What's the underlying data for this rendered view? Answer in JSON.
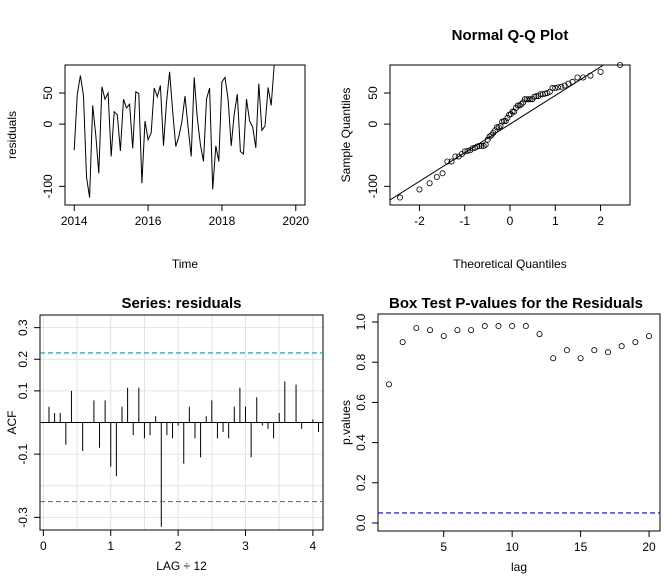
{
  "chart_data": [
    {
      "id": "residuals",
      "type": "line",
      "title": "",
      "xlabel": "Time",
      "ylabel": "residuals",
      "xlim": [
        2013.75,
        2020.25
      ],
      "ylim": [
        -130,
        95
      ],
      "xticks": [
        2014,
        2016,
        2018,
        2020
      ],
      "xtick_labels": [
        "2014",
        "2016",
        "2018",
        "2020"
      ],
      "yticks": [
        -100,
        0,
        50
      ],
      "ytick_labels": [
        "-100",
        "0",
        "50"
      ],
      "start": 2014,
      "frequency": 12,
      "values": [
        -42,
        48,
        78,
        45,
        -85,
        -118,
        30,
        -18,
        -79,
        60,
        40,
        50,
        -52,
        20,
        15,
        -43,
        40,
        26,
        32,
        -39,
        52,
        49,
        -95,
        5,
        -25,
        -14,
        58,
        44,
        62,
        -35,
        35,
        84,
        20,
        -36,
        -20,
        4,
        45,
        -5,
        -52,
        75,
        10,
        -33,
        -60,
        40,
        58,
        -105,
        -35,
        -60,
        68,
        75,
        40,
        -35,
        16,
        48,
        -44,
        -48,
        40,
        5,
        -5,
        -38,
        65,
        -10,
        -3,
        59,
        30,
        95
      ]
    },
    {
      "id": "qqplot",
      "type": "scatter",
      "title": "Normal Q-Q Plot",
      "xlabel": "Theoretical Quantiles",
      "ylabel": "Sample Quantiles",
      "xlim": [
        -2.65,
        2.65
      ],
      "ylim": [
        -130,
        95
      ],
      "xticks": [
        -2,
        -1,
        0,
        1,
        2
      ],
      "xtick_labels": [
        "-2",
        "-1",
        "0",
        "1",
        "2"
      ],
      "yticks": [
        -100,
        0,
        50
      ],
      "ytick_labels": [
        "-100",
        "0",
        "50"
      ],
      "qq_line": {
        "intercept": 0,
        "slope": 46
      },
      "values": [
        -42,
        48,
        78,
        45,
        -85,
        -118,
        30,
        -18,
        -79,
        60,
        40,
        50,
        -52,
        20,
        15,
        -43,
        40,
        26,
        32,
        -39,
        52,
        49,
        -95,
        5,
        -25,
        -14,
        58,
        44,
        62,
        -35,
        35,
        84,
        20,
        -36,
        -20,
        4,
        45,
        -5,
        -52,
        75,
        10,
        -33,
        -60,
        40,
        58,
        -105,
        -35,
        -60,
        68,
        75,
        40,
        -35,
        16,
        48,
        -44,
        -48,
        40,
        5,
        -5,
        -38,
        65,
        -10,
        -3,
        59,
        30,
        95
      ]
    },
    {
      "id": "acf",
      "type": "bar",
      "title": "Series:  residuals",
      "xlabel": "LAG ÷ 12",
      "ylabel": "ACF",
      "xlim": [
        -0.05,
        4.15
      ],
      "ylim": [
        -0.34,
        0.34
      ],
      "xticks": [
        0,
        1,
        2,
        3,
        4
      ],
      "xtick_labels": [
        "0",
        "1",
        "2",
        "3",
        "4"
      ],
      "yticks": [
        -0.3,
        -0.1,
        0.1,
        0.2,
        0.3
      ],
      "ytick_labels": [
        "-0.3",
        "-0.1",
        "0.1",
        "0.2",
        "0.3"
      ],
      "ci_upper": 0.22,
      "ci_lower": -0.25,
      "lag_step": 0.0833333,
      "values": [
        0.05,
        0.03,
        0.03,
        -0.07,
        0.1,
        0,
        -0.09,
        0,
        0.07,
        -0.08,
        0.07,
        -0.14,
        -0.17,
        0.05,
        0.11,
        -0.04,
        0.11,
        -0.05,
        -0.04,
        0.02,
        -0.33,
        -0.04,
        -0.05,
        -0.01,
        -0.13,
        0.05,
        -0.05,
        -0.11,
        0.02,
        0.07,
        -0.05,
        -0.03,
        -0.05,
        0.05,
        0.11,
        0.05,
        -0.11,
        0.08,
        -0.01,
        -0.02,
        -0.05,
        0.03,
        0.13,
        0,
        0.12,
        -0.02,
        0,
        0.01,
        -0.03
      ]
    },
    {
      "id": "boxtest",
      "type": "scatter",
      "title": "Box Test P-values for the Residuals",
      "xlabel": "lag",
      "ylabel": "p.values",
      "xlim": [
        0.2,
        20.8
      ],
      "ylim": [
        -0.04,
        1.04
      ],
      "xticks": [
        5,
        10,
        15,
        20
      ],
      "xtick_labels": [
        "5",
        "10",
        "15",
        "20"
      ],
      "yticks": [
        0,
        0.2,
        0.4,
        0.6,
        0.8,
        1.0
      ],
      "ytick_labels": [
        "0.0",
        "0.2",
        "0.4",
        "0.6",
        "0.8",
        "1.0"
      ],
      "ref_line": 0.05,
      "x": [
        1,
        2,
        3,
        4,
        5,
        6,
        7,
        8,
        9,
        10,
        11,
        12,
        13,
        14,
        15,
        16,
        17,
        18,
        19,
        20
      ],
      "values": [
        0.69,
        0.9,
        0.97,
        0.96,
        0.93,
        0.96,
        0.96,
        0.98,
        0.98,
        0.98,
        0.98,
        0.94,
        0.82,
        0.86,
        0.82,
        0.86,
        0.85,
        0.88,
        0.9,
        0.93
      ]
    }
  ]
}
